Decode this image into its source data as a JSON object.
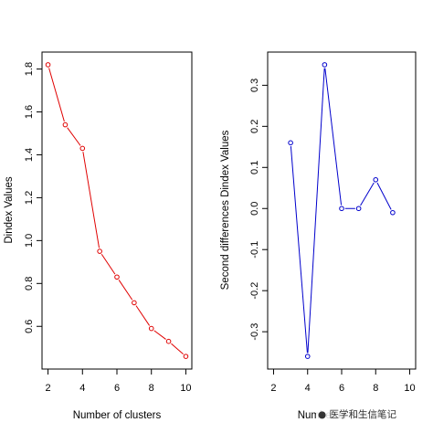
{
  "chart_data": [
    {
      "type": "line",
      "xlabel": "Number of clusters",
      "ylabel": "Dindex Values",
      "xlim": [
        2,
        10
      ],
      "ylim": [
        0.46,
        1.82
      ],
      "xticks": [
        "2",
        "4",
        "6",
        "8",
        "10"
      ],
      "yticks": [
        "0.6",
        "0.8",
        "1.0",
        "1.2",
        "1.4",
        "1.6",
        "1.8"
      ],
      "color": "#e00000",
      "series": [
        {
          "x": [
            2,
            3,
            4,
            5,
            6,
            7,
            8,
            9,
            10
          ],
          "y": [
            1.82,
            1.54,
            1.43,
            0.95,
            0.83,
            0.71,
            0.59,
            0.53,
            0.46
          ]
        }
      ]
    },
    {
      "type": "line",
      "xlabel": "Number of clusters",
      "ylabel": "Second differences Dindex Values",
      "xlim": [
        2,
        10
      ],
      "ylim": [
        -0.36,
        0.35
      ],
      "xticks": [
        "2",
        "4",
        "6",
        "8",
        "10"
      ],
      "yticks": [
        "-0.3",
        "-0.2",
        "-0.1",
        "0.0",
        "0.1",
        "0.2",
        "0.3"
      ],
      "color": "#0000cc",
      "series": [
        {
          "x": [
            3,
            4,
            5,
            6,
            7,
            8,
            9
          ],
          "y": [
            0.16,
            -0.36,
            0.35,
            0.0,
            0.0,
            0.07,
            -0.01
          ]
        }
      ]
    }
  ],
  "watermark": "医学和生信笔记"
}
